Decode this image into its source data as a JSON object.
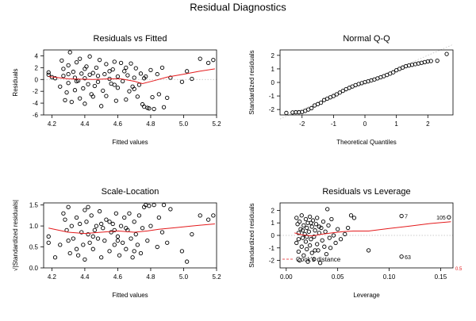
{
  "figure_title": "Residual Diagnostics",
  "colors": {
    "smooth": "#e41a1c",
    "points": "#000000",
    "reference": "#bbbbbb"
  },
  "chart_data": [
    {
      "type": "scatter",
      "title": "Residuals vs Fitted",
      "xlabel": "Fitted values",
      "ylabel": "Residuals",
      "xlim": [
        4.15,
        5.2
      ],
      "ylim": [
        -6,
        5
      ],
      "xticks": [
        4.2,
        4.4,
        4.6,
        4.8,
        5.0,
        5.2
      ],
      "yticks": [
        -6,
        -4,
        -2,
        0,
        2,
        4
      ],
      "tick_labels_x": [
        "4.2",
        "4.4",
        "4.6",
        "4.8",
        "5.0",
        "5.2"
      ],
      "tick_labels_y": [
        "-6",
        "-4",
        "-2",
        "0",
        "2",
        "4"
      ],
      "reference_line_y": 0,
      "points": [
        [
          4.18,
          1.2
        ],
        [
          4.18,
          0.8
        ],
        [
          4.22,
          0.2
        ],
        [
          4.25,
          -1.2
        ],
        [
          4.26,
          3.2
        ],
        [
          4.27,
          1.8
        ],
        [
          4.27,
          0.6
        ],
        [
          4.28,
          -3.5
        ],
        [
          4.29,
          -2.2
        ],
        [
          4.3,
          2.4
        ],
        [
          4.3,
          -0.6
        ],
        [
          4.31,
          4.6
        ],
        [
          4.32,
          -3.8
        ],
        [
          4.33,
          1.3
        ],
        [
          4.34,
          0.3
        ],
        [
          4.34,
          -1.8
        ],
        [
          4.35,
          2.9
        ],
        [
          4.36,
          -0.2
        ],
        [
          4.37,
          -3.2
        ],
        [
          4.37,
          3.5
        ],
        [
          4.38,
          1.0
        ],
        [
          4.39,
          -1.5
        ],
        [
          4.4,
          0.2
        ],
        [
          4.4,
          -4.1
        ],
        [
          4.41,
          2.2
        ],
        [
          4.42,
          -0.8
        ],
        [
          4.43,
          0.8
        ],
        [
          4.43,
          3.9
        ],
        [
          4.44,
          -2.5
        ],
        [
          4.45,
          1.1
        ],
        [
          4.46,
          -1.1
        ],
        [
          4.47,
          2.0
        ],
        [
          4.48,
          -0.4
        ],
        [
          4.48,
          0.6
        ],
        [
          4.49,
          3.3
        ],
        [
          4.5,
          -4.5
        ],
        [
          4.51,
          -1.9
        ],
        [
          4.52,
          0.9
        ],
        [
          4.53,
          2.6
        ],
        [
          4.53,
          -2.8
        ],
        [
          4.55,
          0.1
        ],
        [
          4.56,
          -0.7
        ],
        [
          4.57,
          1.7
        ],
        [
          4.58,
          3.0
        ],
        [
          4.59,
          -3.6
        ],
        [
          4.6,
          -1.4
        ],
        [
          4.6,
          0.5
        ],
        [
          4.62,
          2.8
        ],
        [
          4.63,
          -0.3
        ],
        [
          4.64,
          1.4
        ],
        [
          4.65,
          -3.4
        ],
        [
          4.66,
          0.7
        ],
        [
          4.67,
          -2.0
        ],
        [
          4.68,
          2.7
        ],
        [
          4.69,
          -1.2
        ],
        [
          4.7,
          0.3
        ],
        [
          4.71,
          1.9
        ],
        [
          4.72,
          -2.9
        ],
        [
          4.73,
          -0.9
        ],
        [
          4.74,
          1.0
        ],
        [
          4.75,
          -4.2
        ],
        [
          4.76,
          -4.6
        ],
        [
          4.77,
          0.5
        ],
        [
          4.78,
          -4.8
        ],
        [
          4.79,
          -4.9
        ],
        [
          4.8,
          1.6
        ],
        [
          4.81,
          -3.0
        ],
        [
          4.82,
          -5.0
        ],
        [
          4.84,
          0.9
        ],
        [
          4.85,
          -2.5
        ],
        [
          4.87,
          2.0
        ],
        [
          4.88,
          -4.7
        ],
        [
          4.9,
          -3.1
        ],
        [
          4.92,
          0.3
        ],
        [
          4.99,
          -0.4
        ],
        [
          5.02,
          1.4
        ],
        [
          5.05,
          0.1
        ],
        [
          5.1,
          3.5
        ],
        [
          5.15,
          2.8
        ],
        [
          5.18,
          3.3
        ],
        [
          4.3,
          0.9
        ],
        [
          4.45,
          -2.9
        ],
        [
          4.55,
          1.4
        ],
        [
          4.65,
          2.0
        ],
        [
          4.7,
          -1.6
        ],
        [
          4.4,
          1.8
        ],
        [
          4.58,
          -0.9
        ],
        [
          4.76,
          0.2
        ],
        [
          4.2,
          0.4
        ],
        [
          4.35,
          -0.3
        ]
      ],
      "smooth_line": [
        [
          4.18,
          0.5
        ],
        [
          4.3,
          0.1
        ],
        [
          4.45,
          0.0
        ],
        [
          4.55,
          0.1
        ],
        [
          4.62,
          0.1
        ],
        [
          4.7,
          -0.3
        ],
        [
          4.75,
          -0.7
        ],
        [
          4.82,
          -0.2
        ],
        [
          4.9,
          0.4
        ],
        [
          5.0,
          0.9
        ],
        [
          5.1,
          1.4
        ],
        [
          5.19,
          1.8
        ]
      ],
      "labeled_points": []
    },
    {
      "type": "scatter",
      "title": "Normal Q-Q",
      "xlabel": "Theoretical Quantiles",
      "ylabel": "Standardized residuals",
      "xlim": [
        -2.7,
        2.8
      ],
      "ylim": [
        -2.4,
        2.4
      ],
      "xticks": [
        -2,
        -1,
        0,
        1,
        2
      ],
      "yticks": [
        -2,
        -1,
        0,
        1,
        2
      ],
      "tick_labels_x": [
        "-2",
        "-1",
        "0",
        "1",
        "2"
      ],
      "tick_labels_y": [
        "-2",
        "-1",
        "0",
        "1",
        "2"
      ],
      "reference_diagonal": [
        [
          -2.7,
          -2.7
        ],
        [
          2.8,
          2.8
        ]
      ],
      "points": [
        [
          -2.5,
          -2.25
        ],
        [
          -2.3,
          -2.22
        ],
        [
          -2.2,
          -2.2
        ],
        [
          -2.1,
          -2.2
        ],
        [
          -2.0,
          -2.18
        ],
        [
          -1.9,
          -2.1
        ],
        [
          -1.8,
          -2.0
        ],
        [
          -1.7,
          -1.9
        ],
        [
          -1.6,
          -1.7
        ],
        [
          -1.5,
          -1.6
        ],
        [
          -1.4,
          -1.5
        ],
        [
          -1.3,
          -1.3
        ],
        [
          -1.2,
          -1.2
        ],
        [
          -1.1,
          -1.1
        ],
        [
          -1.0,
          -1.0
        ],
        [
          -0.9,
          -0.88
        ],
        [
          -0.8,
          -0.75
        ],
        [
          -0.7,
          -0.62
        ],
        [
          -0.6,
          -0.5
        ],
        [
          -0.5,
          -0.4
        ],
        [
          -0.4,
          -0.3
        ],
        [
          -0.3,
          -0.2
        ],
        [
          -0.2,
          -0.12
        ],
        [
          -0.1,
          -0.05
        ],
        [
          0.0,
          0.02
        ],
        [
          0.1,
          0.08
        ],
        [
          0.2,
          0.15
        ],
        [
          0.3,
          0.22
        ],
        [
          0.4,
          0.3
        ],
        [
          0.5,
          0.38
        ],
        [
          0.6,
          0.46
        ],
        [
          0.7,
          0.55
        ],
        [
          0.8,
          0.65
        ],
        [
          0.9,
          0.75
        ],
        [
          1.0,
          0.9
        ],
        [
          1.1,
          1.0
        ],
        [
          1.2,
          1.1
        ],
        [
          1.3,
          1.2
        ],
        [
          1.4,
          1.25
        ],
        [
          1.5,
          1.3
        ],
        [
          1.6,
          1.35
        ],
        [
          1.7,
          1.4
        ],
        [
          1.8,
          1.45
        ],
        [
          1.9,
          1.5
        ],
        [
          2.0,
          1.55
        ],
        [
          2.1,
          1.58
        ],
        [
          2.3,
          1.6
        ],
        [
          2.6,
          2.1
        ]
      ],
      "labeled_points": []
    },
    {
      "type": "scatter",
      "title": "Scale-Location",
      "xlabel": "Fitted values",
      "ylabel": "√|Standardized residuals|",
      "xlim": [
        4.15,
        5.2
      ],
      "ylim": [
        0,
        1.55
      ],
      "xticks": [
        4.2,
        4.4,
        4.6,
        4.8,
        5.0,
        5.2
      ],
      "yticks": [
        0.0,
        0.5,
        1.0,
        1.5
      ],
      "tick_labels_x": [
        "4.2",
        "4.4",
        "4.6",
        "4.8",
        "5.0",
        "5.2"
      ],
      "tick_labels_y": [
        "0.0",
        "0.5",
        "1.0",
        "1.5"
      ],
      "points": [
        [
          4.18,
          0.75
        ],
        [
          4.18,
          0.6
        ],
        [
          4.22,
          0.25
        ],
        [
          4.25,
          0.55
        ],
        [
          4.27,
          1.3
        ],
        [
          4.28,
          1.15
        ],
        [
          4.29,
          0.9
        ],
        [
          4.3,
          1.45
        ],
        [
          4.31,
          0.35
        ],
        [
          4.32,
          1.0
        ],
        [
          4.33,
          0.7
        ],
        [
          4.35,
          1.2
        ],
        [
          4.36,
          0.3
        ],
        [
          4.37,
          1.05
        ],
        [
          4.38,
          0.85
        ],
        [
          4.39,
          0.55
        ],
        [
          4.4,
          1.38
        ],
        [
          4.4,
          0.2
        ],
        [
          4.41,
          1.1
        ],
        [
          4.42,
          0.8
        ],
        [
          4.43,
          0.6
        ],
        [
          4.44,
          1.25
        ],
        [
          4.45,
          0.45
        ],
        [
          4.46,
          0.9
        ],
        [
          4.47,
          1.0
        ],
        [
          4.48,
          0.7
        ],
        [
          4.49,
          1.35
        ],
        [
          4.5,
          0.25
        ],
        [
          4.51,
          0.95
        ],
        [
          4.52,
          0.65
        ],
        [
          4.53,
          1.15
        ],
        [
          4.55,
          0.4
        ],
        [
          4.56,
          0.85
        ],
        [
          4.57,
          1.05
        ],
        [
          4.58,
          0.55
        ],
        [
          4.59,
          1.3
        ],
        [
          4.6,
          0.75
        ],
        [
          4.61,
          0.3
        ],
        [
          4.62,
          1.0
        ],
        [
          4.63,
          0.6
        ],
        [
          4.64,
          1.2
        ],
        [
          4.65,
          0.45
        ],
        [
          4.66,
          0.9
        ],
        [
          4.67,
          1.3
        ],
        [
          4.68,
          0.7
        ],
        [
          4.69,
          0.25
        ],
        [
          4.7,
          1.1
        ],
        [
          4.71,
          0.8
        ],
        [
          4.72,
          0.55
        ],
        [
          4.73,
          1.25
        ],
        [
          4.74,
          0.35
        ],
        [
          4.75,
          0.95
        ],
        [
          4.76,
          1.45
        ],
        [
          4.77,
          1.5
        ],
        [
          4.78,
          0.65
        ],
        [
          4.79,
          1.48
        ],
        [
          4.8,
          1.0
        ],
        [
          4.82,
          1.5
        ],
        [
          4.84,
          0.5
        ],
        [
          4.85,
          1.2
        ],
        [
          4.87,
          0.85
        ],
        [
          4.88,
          1.5
        ],
        [
          4.9,
          0.6
        ],
        [
          4.92,
          1.4
        ],
        [
          4.99,
          0.4
        ],
        [
          5.02,
          0.15
        ],
        [
          5.05,
          0.8
        ],
        [
          5.1,
          1.25
        ],
        [
          5.15,
          1.15
        ],
        [
          5.18,
          1.25
        ],
        [
          4.3,
          0.65
        ],
        [
          4.45,
          0.75
        ],
        [
          4.55,
          1.1
        ],
        [
          4.65,
          0.95
        ],
        [
          4.35,
          0.45
        ],
        [
          4.5,
          1.05
        ],
        [
          4.6,
          0.65
        ],
        [
          4.7,
          0.4
        ],
        [
          4.42,
          1.45
        ],
        [
          4.58,
          0.9
        ]
      ],
      "smooth_line": [
        [
          4.18,
          0.95
        ],
        [
          4.3,
          0.85
        ],
        [
          4.4,
          0.82
        ],
        [
          4.5,
          0.85
        ],
        [
          4.6,
          0.88
        ],
        [
          4.7,
          0.85
        ],
        [
          4.78,
          0.88
        ],
        [
          4.85,
          0.92
        ],
        [
          4.95,
          0.96
        ],
        [
          5.05,
          1.0
        ],
        [
          5.19,
          1.05
        ]
      ],
      "labeled_points": []
    },
    {
      "type": "scatter",
      "title": "Residuals vs Leverage",
      "xlabel": "Leverage",
      "ylabel": "Standardized residuals",
      "xlim": [
        -0.006,
        0.162
      ],
      "ylim": [
        -2.6,
        2.6
      ],
      "xticks": [
        0.0,
        0.05,
        0.1,
        0.15
      ],
      "yticks": [
        -2,
        -1,
        0,
        1,
        2
      ],
      "tick_labels_x": [
        "0.00",
        "0.05",
        "0.10",
        "0.15"
      ],
      "tick_labels_y": [
        "-2",
        "-1",
        "0",
        "1",
        "2"
      ],
      "reference_line_y": 0,
      "points": [
        [
          0.01,
          1.4
        ],
        [
          0.01,
          -0.6
        ],
        [
          0.011,
          0.9
        ],
        [
          0.012,
          -1.3
        ],
        [
          0.012,
          0.2
        ],
        [
          0.013,
          1.1
        ],
        [
          0.013,
          -2.0
        ],
        [
          0.014,
          0.5
        ],
        [
          0.015,
          -0.9
        ],
        [
          0.015,
          1.6
        ],
        [
          0.016,
          -0.2
        ],
        [
          0.017,
          0.8
        ],
        [
          0.017,
          -1.6
        ],
        [
          0.018,
          0.1
        ],
        [
          0.019,
          1.3
        ],
        [
          0.019,
          -0.5
        ],
        [
          0.02,
          -1.1
        ],
        [
          0.02,
          0.6
        ],
        [
          0.021,
          1.0
        ],
        [
          0.021,
          -2.1
        ],
        [
          0.022,
          0.3
        ],
        [
          0.023,
          -0.8
        ],
        [
          0.023,
          1.5
        ],
        [
          0.024,
          -0.3
        ],
        [
          0.025,
          -1.4
        ],
        [
          0.025,
          0.7
        ],
        [
          0.026,
          1.2
        ],
        [
          0.027,
          -0.1
        ],
        [
          0.027,
          -1.9
        ],
        [
          0.028,
          0.4
        ],
        [
          0.029,
          0.9
        ],
        [
          0.03,
          -0.7
        ],
        [
          0.03,
          1.4
        ],
        [
          0.031,
          -1.2
        ],
        [
          0.032,
          0.2
        ],
        [
          0.033,
          -2.2
        ],
        [
          0.034,
          0.6
        ],
        [
          0.035,
          -0.4
        ],
        [
          0.036,
          1.1
        ],
        [
          0.037,
          -0.9
        ],
        [
          0.038,
          0.3
        ],
        [
          0.039,
          -1.5
        ],
        [
          0.04,
          2.1
        ],
        [
          0.041,
          0.8
        ],
        [
          0.042,
          -0.2
        ],
        [
          0.043,
          -1.0
        ],
        [
          0.044,
          1.3
        ],
        [
          0.046,
          0.0
        ],
        [
          0.048,
          -0.6
        ],
        [
          0.05,
          0.5
        ],
        [
          0.053,
          -0.3
        ],
        [
          0.057,
          0.1
        ],
        [
          0.06,
          0.6
        ],
        [
          0.063,
          1.6
        ],
        [
          0.066,
          1.4
        ],
        [
          0.08,
          -1.2
        ],
        [
          0.112,
          1.55
        ],
        [
          0.112,
          -1.7
        ],
        [
          0.158,
          1.45
        ],
        [
          0.012,
          -0.3
        ],
        [
          0.016,
          0.4
        ],
        [
          0.02,
          -0.1
        ],
        [
          0.024,
          1.0
        ],
        [
          0.028,
          -1.2
        ],
        [
          0.032,
          0.7
        ]
      ],
      "smooth_line": [
        [
          0.008,
          0.2
        ],
        [
          0.015,
          0.05
        ],
        [
          0.025,
          -0.05
        ],
        [
          0.035,
          0.1
        ],
        [
          0.045,
          0.2
        ],
        [
          0.055,
          0.3
        ],
        [
          0.065,
          0.35
        ],
        [
          0.08,
          0.35
        ],
        [
          0.1,
          0.55
        ],
        [
          0.12,
          0.75
        ],
        [
          0.14,
          0.95
        ],
        [
          0.16,
          1.1
        ]
      ],
      "labeled_points": [
        {
          "label": "7",
          "x": 0.112,
          "y": 1.55
        },
        {
          "label": "105",
          "x": 0.158,
          "y": 1.45
        },
        {
          "label": "63",
          "x": 0.112,
          "y": -1.7
        }
      ],
      "legend_label": "Cook's distance",
      "contour_label": "0.5"
    }
  ]
}
